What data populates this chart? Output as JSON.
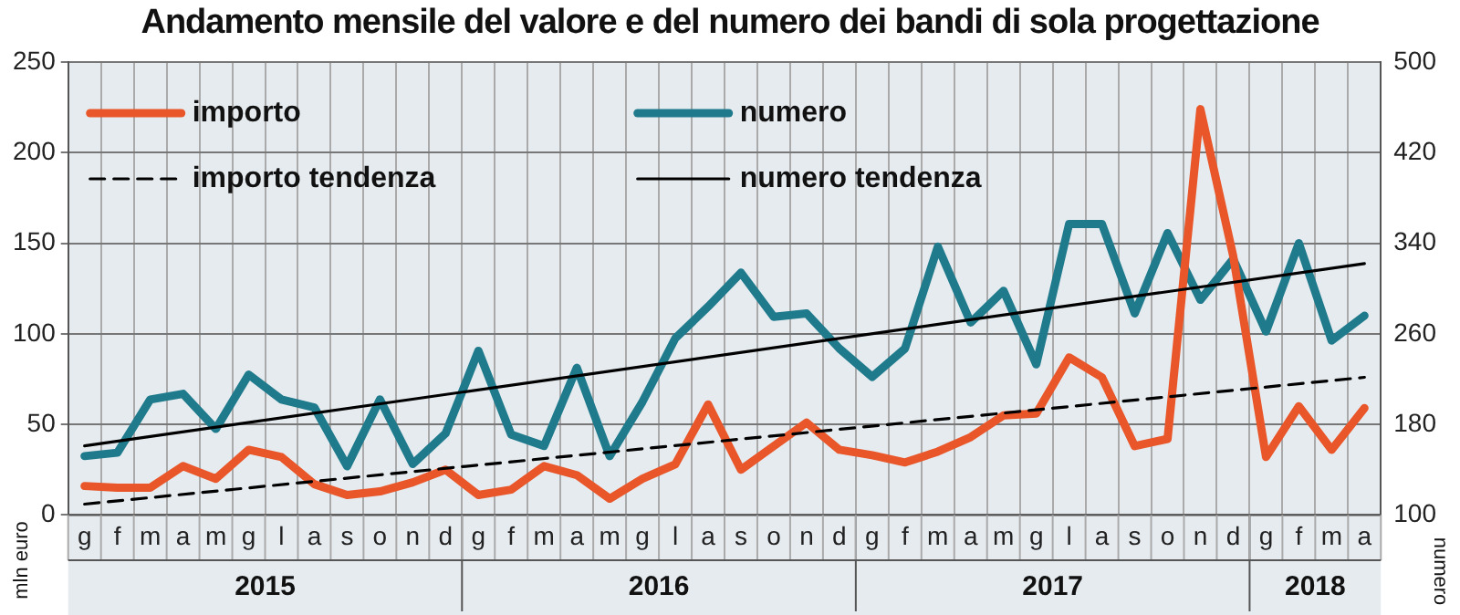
{
  "chart_data": {
    "type": "line",
    "title": "Andamento mensile del valore e del numero dei bandi di sola progettazione",
    "categories": [
      "g",
      "f",
      "m",
      "a",
      "m",
      "g",
      "l",
      "a",
      "s",
      "o",
      "n",
      "d",
      "g",
      "f",
      "m",
      "a",
      "m",
      "g",
      "l",
      "a",
      "s",
      "o",
      "n",
      "d",
      "g",
      "f",
      "m",
      "a",
      "m",
      "g",
      "l",
      "a",
      "s",
      "o",
      "n",
      "d",
      "g",
      "f",
      "m",
      "a"
    ],
    "series": [
      {
        "name": "importo",
        "color": "#e8562a",
        "line_style": "solid",
        "values": [
          16,
          15,
          15,
          27,
          20,
          36,
          32,
          17,
          11,
          13,
          18,
          25,
          11,
          14,
          27,
          22,
          9,
          20,
          28,
          61,
          25,
          38,
          51,
          36,
          33,
          29,
          35,
          43,
          55,
          56,
          87,
          76,
          38,
          42,
          224,
          143,
          32,
          60,
          36,
          59
        ]
      },
      {
        "name": "numero",
        "color": "#1f7a8c",
        "axis": "y2",
        "line_style": "solid",
        "values": [
          152,
          155,
          202,
          207,
          176,
          224,
          202,
          195,
          143,
          202,
          145,
          172,
          245,
          171,
          161,
          230,
          152,
          200,
          256,
          284,
          314,
          275,
          278,
          247,
          222,
          247,
          337,
          270,
          298,
          233,
          357,
          357,
          278,
          349,
          290,
          326,
          262,
          340,
          254,
          276
        ]
      },
      {
        "name": "importo tendenza",
        "color": "#000000",
        "line_style": "dashed",
        "values": [
          6,
          null,
          null,
          null,
          null,
          null,
          null,
          null,
          null,
          null,
          null,
          null,
          null,
          null,
          null,
          null,
          null,
          null,
          null,
          null,
          null,
          null,
          null,
          null,
          null,
          null,
          null,
          null,
          null,
          null,
          null,
          null,
          null,
          null,
          null,
          null,
          null,
          null,
          null,
          76
        ]
      },
      {
        "name": "numero tendenza",
        "color": "#000000",
        "axis": "y2",
        "line_style": "solid",
        "values": [
          161,
          null,
          null,
          null,
          null,
          null,
          null,
          null,
          null,
          null,
          null,
          null,
          null,
          null,
          null,
          null,
          null,
          null,
          null,
          null,
          null,
          null,
          null,
          null,
          null,
          null,
          null,
          null,
          null,
          null,
          null,
          null,
          null,
          null,
          null,
          null,
          null,
          null,
          null,
          322
        ]
      }
    ],
    "ylim": [
      0,
      250
    ],
    "yticks": [
      0,
      50,
      100,
      150,
      200,
      250
    ],
    "y2lim": [
      100,
      500
    ],
    "y2ticks": [
      100,
      180,
      260,
      340,
      420,
      500
    ],
    "ylabel": "mln euro",
    "y2label": "numero",
    "annotations": [
      "2015",
      "2016",
      "2017",
      "2018"
    ],
    "grid": true,
    "legend": "top left",
    "marker": "none"
  }
}
